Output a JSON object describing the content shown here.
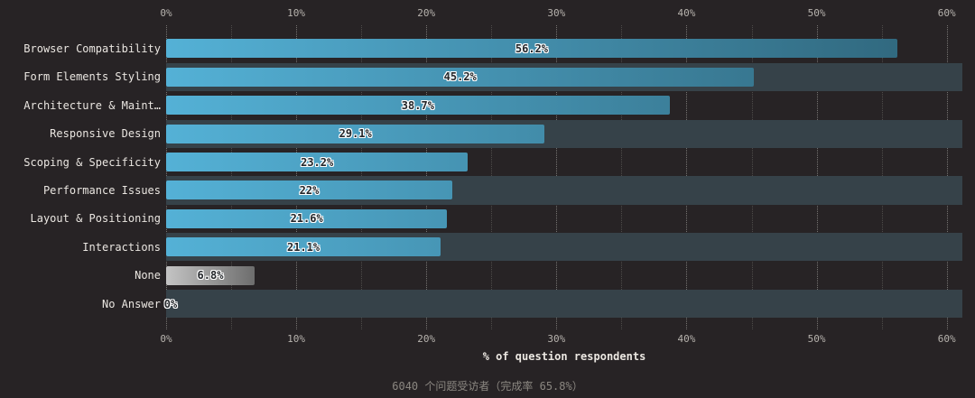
{
  "chart_data": {
    "type": "bar",
    "orientation": "horizontal",
    "categories": [
      "Browser Compatibility",
      "Form Elements Styling",
      "Architecture & Maint…",
      "Responsive Design",
      "Scoping & Specificity",
      "Performance Issues",
      "Layout & Positioning",
      "Interactions",
      "None",
      "No Answer"
    ],
    "values": [
      56.2,
      45.2,
      38.7,
      29.1,
      23.2,
      22,
      21.6,
      21.1,
      6.8,
      0
    ],
    "value_labels": [
      "56.2%",
      "45.2%",
      "38.7%",
      "29.1%",
      "23.2%",
      "22%",
      "21.6%",
      "21.1%",
      "6.8%",
      "0%"
    ],
    "bar_styles": [
      "blue",
      "blue",
      "blue",
      "blue",
      "blue",
      "blue",
      "blue",
      "blue",
      "gray",
      "none"
    ],
    "xlabel": "% of question respondents",
    "x_ticks": [
      {
        "value": 0,
        "label": "0%"
      },
      {
        "value": 10,
        "label": "10%"
      },
      {
        "value": 20,
        "label": "20%"
      },
      {
        "value": 30,
        "label": "30%"
      },
      {
        "value": 40,
        "label": "40%"
      },
      {
        "value": 50,
        "label": "50%"
      },
      {
        "value": 60,
        "label": "60%"
      }
    ],
    "minor_tick_step": 5,
    "xlim": [
      0,
      61.2
    ],
    "grid": true,
    "legend": "none",
    "zebra_striping": "even rows (2nd, 4th, ...) have a full-width slate track background",
    "colors": {
      "background": "#272325",
      "track": "#364249",
      "bar_gradient_start": "#54b1d6",
      "bar_gradient_end": "#2e6378",
      "gray_gradient_start": "#c4c4c4",
      "gray_gradient_end": "#6d6d6d"
    }
  },
  "footer": {
    "note": "6040 个问题受访者（完成率 65.8%）"
  }
}
